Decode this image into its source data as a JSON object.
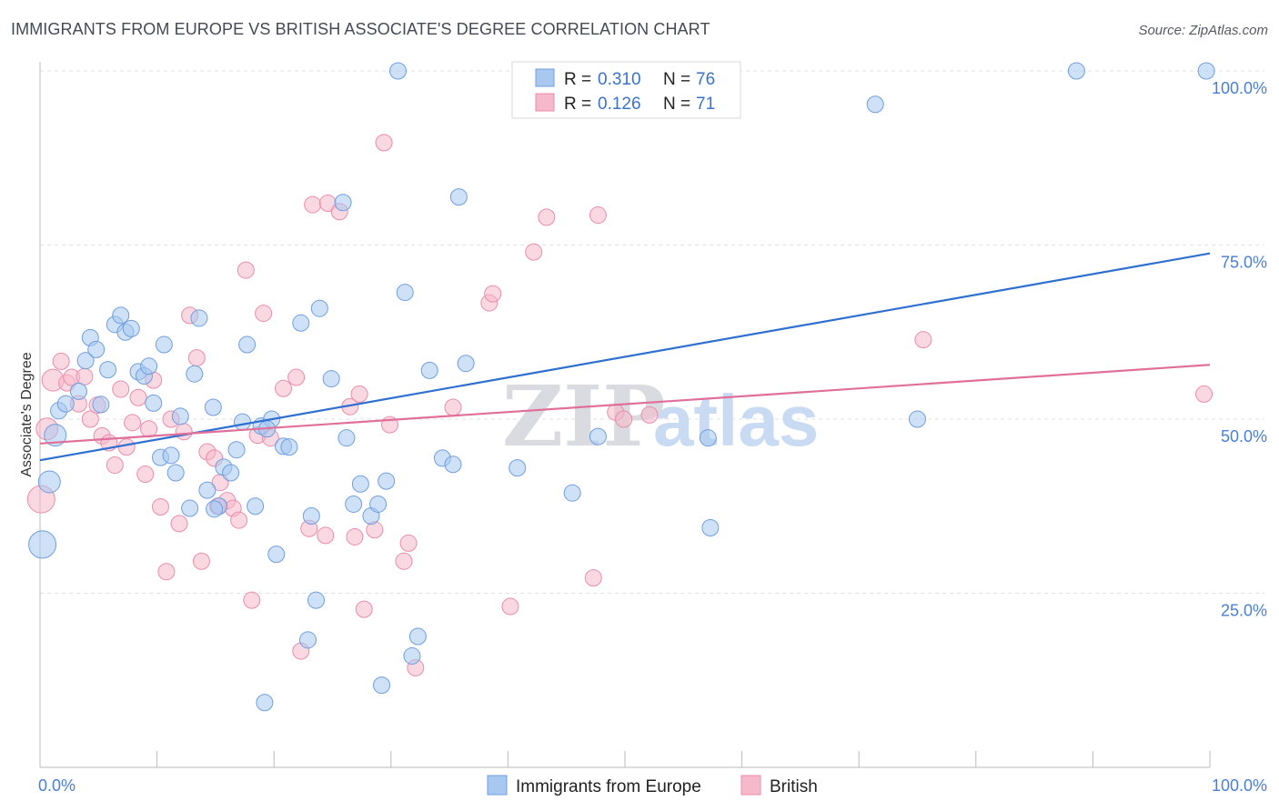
{
  "header": {
    "title": "IMMIGRANTS FROM EUROPE VS BRITISH ASSOCIATE'S DEGREE CORRELATION CHART",
    "source": "Source: ZipAtlas.com"
  },
  "watermark": {
    "zip": "ZIP",
    "atlas": "atlas"
  },
  "stats": [
    {
      "r_label": "R =",
      "r_value": "0.310",
      "n_label": "N =",
      "n_value": "76",
      "color": "#a8c8f0"
    },
    {
      "r_label": "R =",
      "r_value": "0.126",
      "n_label": "N =",
      "n_value": "71",
      "color": "#f6b8cb"
    }
  ],
  "chart_data": {
    "type": "scatter",
    "xlabel": "",
    "ylabel": "Associate's Degree",
    "xlim": [
      0,
      100
    ],
    "ylim": [
      0,
      100
    ],
    "x_tick_labels": [
      "0.0%",
      "100.0%"
    ],
    "y_ticks": [
      25,
      50,
      75,
      100
    ],
    "y_tick_labels": [
      "25.0%",
      "50.0%",
      "75.0%",
      "100.0%"
    ],
    "grid": true,
    "legend_position": "bottom-center",
    "series": [
      {
        "name": "Immigrants from Europe",
        "color": "#a8c8f0",
        "stroke": "#6f9fde",
        "line_color": "#2e6fd0",
        "trend": {
          "x": [
            0,
            100
          ],
          "y": [
            44.1,
            73.8
          ]
        },
        "points": [
          [
            0.2,
            32.0
          ],
          [
            0.8,
            41.0
          ],
          [
            1.3,
            47.7
          ],
          [
            1.6,
            51.2
          ],
          [
            2.2,
            52.2
          ],
          [
            3.3,
            54.0
          ],
          [
            3.9,
            58.4
          ],
          [
            4.3,
            61.7
          ],
          [
            4.8,
            60.0
          ],
          [
            5.2,
            52.1
          ],
          [
            5.8,
            57.1
          ],
          [
            6.4,
            63.6
          ],
          [
            6.9,
            64.9
          ],
          [
            7.3,
            62.5
          ],
          [
            7.8,
            63.0
          ],
          [
            8.4,
            56.8
          ],
          [
            8.9,
            56.2
          ],
          [
            9.3,
            57.6
          ],
          [
            9.7,
            52.3
          ],
          [
            10.3,
            44.5
          ],
          [
            10.6,
            60.7
          ],
          [
            11.2,
            44.8
          ],
          [
            11.6,
            42.3
          ],
          [
            12.0,
            50.4
          ],
          [
            12.8,
            37.2
          ],
          [
            13.2,
            56.5
          ],
          [
            13.6,
            64.5
          ],
          [
            14.3,
            39.8
          ],
          [
            14.8,
            51.7
          ],
          [
            15.3,
            37.5
          ],
          [
            15.7,
            43.1
          ],
          [
            16.3,
            42.3
          ],
          [
            16.8,
            45.6
          ],
          [
            17.3,
            49.6
          ],
          [
            17.7,
            60.7
          ],
          [
            18.4,
            37.5
          ],
          [
            18.9,
            49.0
          ],
          [
            19.2,
            9.3
          ],
          [
            19.8,
            50.0
          ],
          [
            20.2,
            30.6
          ],
          [
            20.8,
            46.1
          ],
          [
            21.3,
            46.0
          ],
          [
            22.3,
            63.8
          ],
          [
            22.9,
            18.3
          ],
          [
            23.2,
            36.1
          ],
          [
            23.6,
            24.0
          ],
          [
            23.9,
            65.9
          ],
          [
            24.9,
            55.8
          ],
          [
            25.9,
            81.1
          ],
          [
            26.2,
            47.3
          ],
          [
            26.8,
            37.8
          ],
          [
            27.4,
            40.7
          ],
          [
            28.3,
            36.1
          ],
          [
            28.9,
            37.8
          ],
          [
            29.6,
            41.1
          ],
          [
            29.2,
            11.8
          ],
          [
            30.6,
            100.0
          ],
          [
            31.2,
            68.2
          ],
          [
            31.8,
            16.0
          ],
          [
            32.3,
            18.8
          ],
          [
            33.3,
            57.0
          ],
          [
            34.4,
            44.4
          ],
          [
            35.3,
            43.5
          ],
          [
            35.8,
            81.9
          ],
          [
            36.4,
            58.0
          ],
          [
            40.8,
            43.0
          ],
          [
            45.5,
            39.4
          ],
          [
            47.7,
            47.5
          ],
          [
            57.1,
            47.3
          ],
          [
            57.3,
            34.4
          ],
          [
            71.4,
            95.2
          ],
          [
            75.0,
            50.0
          ],
          [
            88.6,
            100.0
          ],
          [
            99.7,
            100.0
          ],
          [
            19.4,
            48.6
          ],
          [
            14.9,
            37.1
          ]
        ]
      },
      {
        "name": "British",
        "color": "#f6b8cb",
        "stroke": "#e98eaa",
        "line_color": "#e0709a",
        "trend": {
          "x": [
            0,
            100
          ],
          "y": [
            46.5,
            57.8
          ]
        },
        "points": [
          [
            0.1,
            38.5
          ],
          [
            0.6,
            48.6
          ],
          [
            1.1,
            55.6
          ],
          [
            1.8,
            58.3
          ],
          [
            2.3,
            55.2
          ],
          [
            2.7,
            56.0
          ],
          [
            3.3,
            52.2
          ],
          [
            3.8,
            56.1
          ],
          [
            4.3,
            50.0
          ],
          [
            4.9,
            52.0
          ],
          [
            5.3,
            47.6
          ],
          [
            5.9,
            46.6
          ],
          [
            6.4,
            43.4
          ],
          [
            6.9,
            54.3
          ],
          [
            7.4,
            46.0
          ],
          [
            7.9,
            49.5
          ],
          [
            8.4,
            53.1
          ],
          [
            9.0,
            42.1
          ],
          [
            9.3,
            48.6
          ],
          [
            9.7,
            55.6
          ],
          [
            10.3,
            37.4
          ],
          [
            10.8,
            28.1
          ],
          [
            11.2,
            50.0
          ],
          [
            11.9,
            35.0
          ],
          [
            12.3,
            48.2
          ],
          [
            12.8,
            64.9
          ],
          [
            13.4,
            58.8
          ],
          [
            13.8,
            29.6
          ],
          [
            14.3,
            45.3
          ],
          [
            14.9,
            44.4
          ],
          [
            15.4,
            40.9
          ],
          [
            16.0,
            38.3
          ],
          [
            16.5,
            37.2
          ],
          [
            17.0,
            35.5
          ],
          [
            17.6,
            71.4
          ],
          [
            18.1,
            24.0
          ],
          [
            18.6,
            47.7
          ],
          [
            19.1,
            65.2
          ],
          [
            19.7,
            47.3
          ],
          [
            20.8,
            54.4
          ],
          [
            21.9,
            56.0
          ],
          [
            22.3,
            16.7
          ],
          [
            23.0,
            34.3
          ],
          [
            23.3,
            80.8
          ],
          [
            24.4,
            33.3
          ],
          [
            24.6,
            81.0
          ],
          [
            25.6,
            79.8
          ],
          [
            26.5,
            51.8
          ],
          [
            26.9,
            33.1
          ],
          [
            27.3,
            53.6
          ],
          [
            27.7,
            22.7
          ],
          [
            28.6,
            34.1
          ],
          [
            29.4,
            89.7
          ],
          [
            29.9,
            49.2
          ],
          [
            31.1,
            29.6
          ],
          [
            31.5,
            32.2
          ],
          [
            32.1,
            14.3
          ],
          [
            35.3,
            51.7
          ],
          [
            38.4,
            66.7
          ],
          [
            38.7,
            68.0
          ],
          [
            40.2,
            23.1
          ],
          [
            42.2,
            74.0
          ],
          [
            43.3,
            79.0
          ],
          [
            47.3,
            27.2
          ],
          [
            47.7,
            79.3
          ],
          [
            49.2,
            51.0
          ],
          [
            49.9,
            50.0
          ],
          [
            52.1,
            50.6
          ],
          [
            75.5,
            61.4
          ],
          [
            99.5,
            53.6
          ],
          [
            15.2,
            37.5
          ]
        ]
      }
    ]
  }
}
